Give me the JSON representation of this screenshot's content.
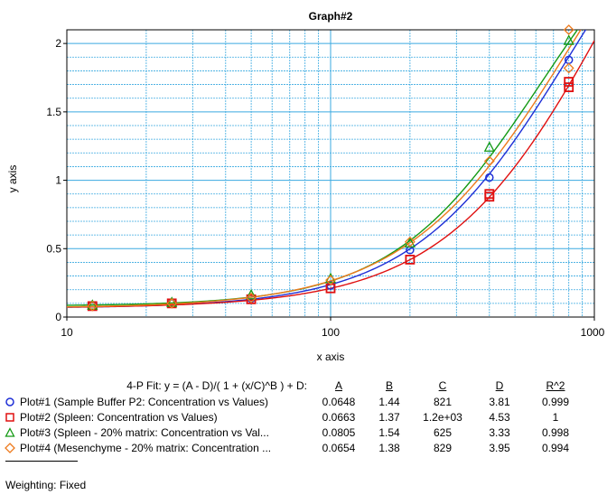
{
  "chart_data": {
    "type": "scatter",
    "title": "Graph#2",
    "xlabel": "x axis",
    "ylabel": "y axis",
    "xscale": "log",
    "xlim": [
      10,
      1000
    ],
    "ylim": [
      0,
      2.1
    ],
    "x_ticks": [
      "10",
      "100",
      "1000"
    ],
    "y_ticks": [
      "0",
      "0.5",
      "1",
      "1.5",
      "2"
    ],
    "grid": true,
    "fit_label": "4-P Fit: y = (A - D)/( 1 + (x/C)^B ) + D:",
    "param_headers": [
      "A",
      "B",
      "C",
      "D",
      "R^2"
    ],
    "weighting": "Weighting: Fixed",
    "series": [
      {
        "name": "Plot#1 (Sample Buffer P2: Concentration vs Values)",
        "color": "#1f2fd6",
        "marker": "circle",
        "params": [
          "0.0648",
          "1.44",
          "821",
          "3.81",
          "0.999"
        ],
        "fit": {
          "A": 0.0648,
          "B": 1.44,
          "C": 821,
          "D": 3.81
        },
        "points": [
          [
            12.5,
            0.08
          ],
          [
            25,
            0.1
          ],
          [
            50,
            0.135
          ],
          [
            100,
            0.23
          ],
          [
            200,
            0.49
          ],
          [
            400,
            1.02
          ],
          [
            800,
            1.88
          ]
        ]
      },
      {
        "name": "Plot#2 (Spleen: Concentration vs Values)",
        "color": "#e01010",
        "marker": "square",
        "params": [
          "0.0663",
          "1.37",
          "1.2e+03",
          "4.53",
          "1"
        ],
        "fit": {
          "A": 0.0663,
          "B": 1.37,
          "C": 1200,
          "D": 4.53
        },
        "points": [
          [
            12.5,
            0.08
          ],
          [
            25,
            0.1
          ],
          [
            50,
            0.13
          ],
          [
            100,
            0.21
          ],
          [
            200,
            0.42
          ],
          [
            400,
            0.88
          ],
          [
            400,
            0.9
          ],
          [
            800,
            1.68
          ],
          [
            800,
            1.72
          ]
        ]
      },
      {
        "name": "Plot#3 (Spleen - 20% matrix: Concentration vs Val...",
        "color": "#149a14",
        "marker": "triangle",
        "params": [
          "0.0805",
          "1.54",
          "625",
          "3.33",
          "0.998"
        ],
        "fit": {
          "A": 0.0805,
          "B": 1.54,
          "C": 625,
          "D": 3.33
        },
        "points": [
          [
            12.5,
            0.085
          ],
          [
            25,
            0.105
          ],
          [
            50,
            0.16
          ],
          [
            100,
            0.28
          ],
          [
            200,
            0.54
          ],
          [
            400,
            1.24
          ],
          [
            800,
            2.02
          ]
        ]
      },
      {
        "name": "Plot#4 (Mesenchyme - 20% matrix: Concentration ...",
        "color": "#ee7a1c",
        "marker": "diamond",
        "params": [
          "0.0654",
          "1.38",
          "829",
          "3.95",
          "0.994"
        ],
        "fit": {
          "A": 0.0654,
          "B": 1.38,
          "C": 829,
          "D": 3.95
        },
        "points": [
          [
            12.5,
            0.08
          ],
          [
            25,
            0.1
          ],
          [
            50,
            0.14
          ],
          [
            100,
            0.27
          ],
          [
            200,
            0.55
          ],
          [
            400,
            1.14
          ],
          [
            800,
            2.1
          ],
          [
            800,
            1.82
          ]
        ]
      }
    ]
  }
}
